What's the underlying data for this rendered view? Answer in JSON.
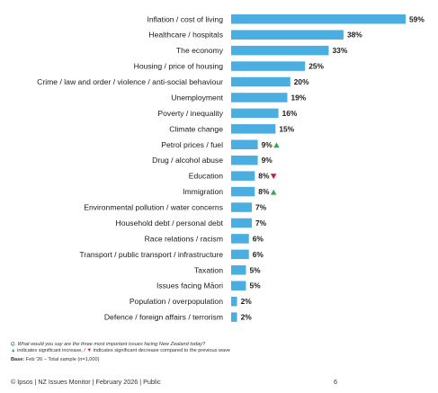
{
  "chart_data": {
    "type": "bar",
    "orientation": "horizontal",
    "bar_color": "#4aaee0",
    "value_suffix": "%",
    "xlim": [
      0,
      59
    ],
    "categories": [
      "Inflation / cost of living",
      "Healthcare / hospitals",
      "The economy",
      "Housing / price of housing",
      "Crime / law and order / violence / anti-social behaviour",
      "Unemployment",
      "Poverty / inequality",
      "Climate change",
      "Petrol prices / fuel",
      "Drug / alcohol abuse",
      "Education",
      "Immigration",
      "Environmental pollution / water concerns",
      "Household debt / personal debt",
      "Race relations / racism",
      "Transport / public transport / infrastructure",
      "Taxation",
      "Issues facing Māori",
      "Population / overpopulation",
      "Defence / foreign affairs / terrorism"
    ],
    "values": [
      59,
      38,
      33,
      25,
      20,
      19,
      16,
      15,
      9,
      9,
      8,
      8,
      7,
      7,
      6,
      6,
      5,
      5,
      2,
      2
    ],
    "markers": [
      "",
      "",
      "",
      "",
      "",
      "",
      "",
      "",
      "up",
      "",
      "down",
      "up",
      "",
      "",
      "",
      "",
      "",
      "",
      "",
      ""
    ],
    "marker_colors": {
      "up": "#3aa655",
      "down": "#d0202f"
    }
  },
  "notes": {
    "question": "Q. What would you say are the three most important issues facing New Zealand today?",
    "legend_up_symbol": "▲",
    "legend_up_text": " indicates significant increase, / ",
    "legend_down_symbol": "▼",
    "legend_down_text": " indicates significant decrease compared to the previous wave",
    "base_label": "Base:",
    "base_text": " Feb '26 – Total sample (n=1,000)"
  },
  "footer": {
    "text": "© Ipsos | NZ Issues Monitor | February 2026 | Public",
    "page_number": "6"
  }
}
